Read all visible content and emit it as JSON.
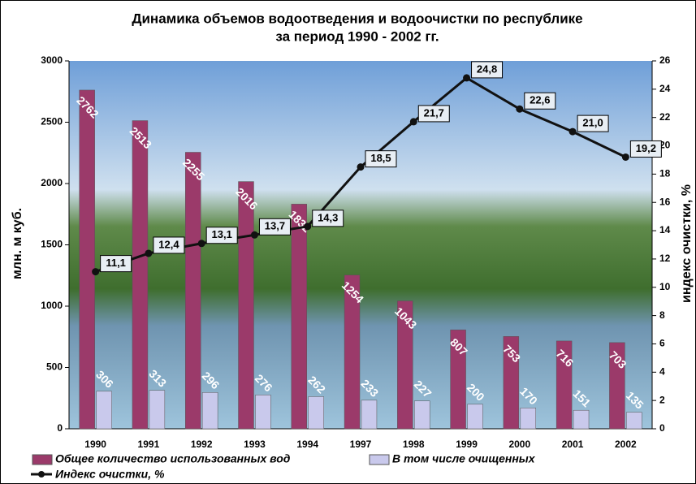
{
  "chart_data": {
    "type": "bar_line",
    "title": [
      "Динамика объемов водоотведения и водоочистки по республике",
      "за период 1990 - 2002 гг."
    ],
    "y_label": "млн. м куб.",
    "y2_label": "индекс очистки, %",
    "categories": [
      "1990",
      "1991",
      "1992",
      "1993",
      "1994",
      "1997",
      "1998",
      "1999",
      "2000",
      "2001",
      "2002"
    ],
    "series": [
      {
        "name": "Общее количество использованных вод",
        "color": "#9b3a6a",
        "type": "bar",
        "values": [
          2762,
          2513,
          2255,
          2016,
          1832,
          1254,
          1043,
          807,
          753,
          716,
          703
        ]
      },
      {
        "name": "В том числе очищенных",
        "color": "#c9c9ec",
        "type": "bar",
        "values": [
          306,
          313,
          296,
          276,
          262,
          233,
          227,
          200,
          170,
          151,
          135
        ]
      },
      {
        "name": "Индекс очистки, %",
        "color": "#111111",
        "type": "line",
        "axis": "y2",
        "values": [
          11.1,
          12.4,
          13.1,
          13.7,
          14.3,
          18.5,
          21.7,
          24.8,
          22.6,
          21.0,
          19.2
        ],
        "value_labels": [
          "11,1",
          "12,4",
          "13,1",
          "13,7",
          "14,3",
          "18,5",
          "21,7",
          "24,8",
          "22,6",
          "21,0",
          "19,2"
        ]
      }
    ],
    "ylim": [
      0,
      3000
    ],
    "yticks": [
      0,
      500,
      1000,
      1500,
      2000,
      2500,
      3000
    ],
    "y2lim": [
      0,
      26
    ],
    "y2ticks": [
      0,
      2,
      4,
      6,
      8,
      10,
      12,
      14,
      16,
      18,
      20,
      22,
      24,
      26
    ]
  }
}
